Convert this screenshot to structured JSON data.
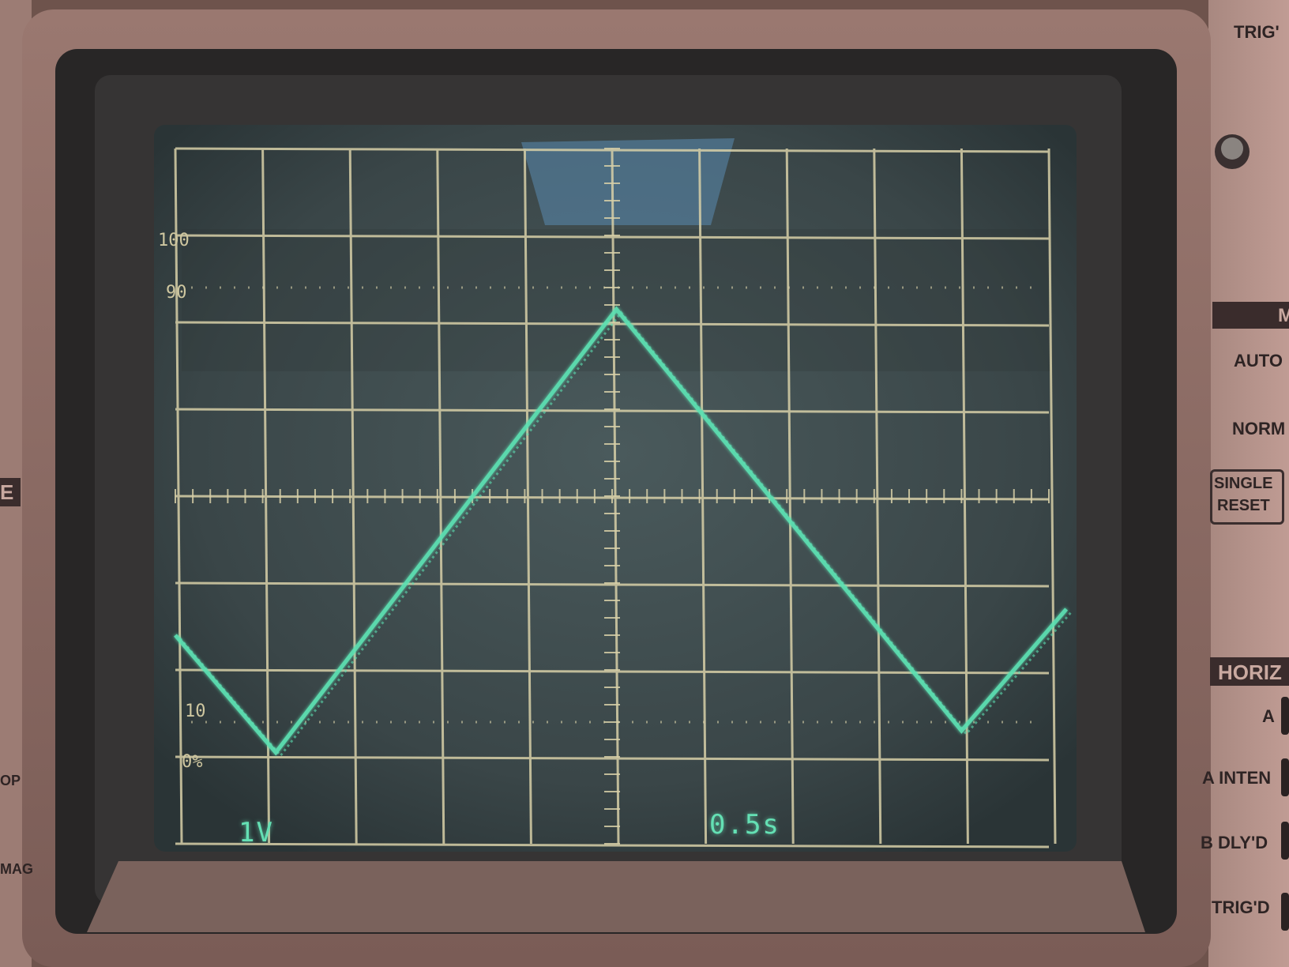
{
  "colors": {
    "bezel": "#8c6c64",
    "bezel_dark": "#2a2a2a",
    "screen_bg": "#3c4a4c",
    "graticule": "#d8d0a8",
    "trace": "#5de0b2",
    "panel": "#b59088"
  },
  "screen": {
    "graticule_labels": {
      "top": "100",
      "ninety": "90",
      "ten": "10",
      "zero": "0%"
    },
    "readouts": {
      "volts_per_div": "1V",
      "time_per_div": "0.5s"
    }
  },
  "waveform": {
    "type": "triangle",
    "points_div": [
      [
        0.0,
        -1.6
      ],
      [
        1.15,
        -2.95
      ],
      [
        5.05,
        2.15
      ],
      [
        9.0,
        -2.7
      ],
      [
        10.2,
        -1.3
      ]
    ]
  },
  "panel": {
    "top_label": "TRIG'",
    "mode_header": "M",
    "auto": "AUTO",
    "norm": "NORM",
    "single": "SINGLE",
    "reset": "RESET",
    "horiz_header": "HORIZ",
    "a": "A",
    "a_inten": "A INTEN",
    "b_dlyd": "B DLY'D",
    "trigd": "TRIG'D"
  },
  "left_panel": {
    "frag_e": "E",
    "frag_op": "OP",
    "frag_mag": "MAG"
  }
}
